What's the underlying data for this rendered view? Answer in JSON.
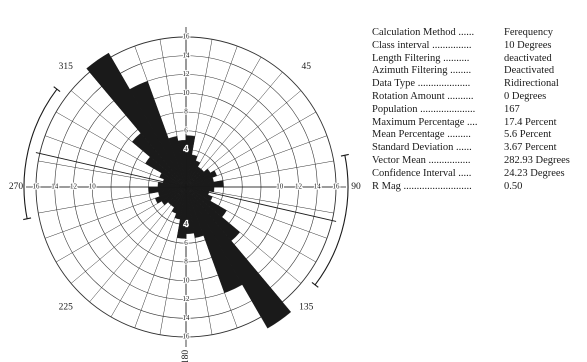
{
  "chart_data": {
    "type": "rose",
    "title": "",
    "bin_width_degrees": 10,
    "scale_max": 16,
    "rings": [
      2,
      4,
      6,
      8,
      10,
      12,
      14,
      16
    ],
    "scale_tick_labels": [
      "16",
      "14",
      "12",
      "10",
      "8",
      "6",
      "4",
      "2"
    ],
    "compass_labels": [
      {
        "angle": 0,
        "text": ""
      },
      {
        "angle": 45,
        "text": "45"
      },
      {
        "angle": 90,
        "text": "90"
      },
      {
        "angle": 135,
        "text": "135"
      },
      {
        "angle": 180,
        "text": "180"
      },
      {
        "angle": 225,
        "text": "225"
      },
      {
        "angle": 270,
        "text": "270"
      },
      {
        "angle": 315,
        "text": "315"
      }
    ],
    "bins": [
      {
        "from": 0,
        "to": 10,
        "percent": 5.5
      },
      {
        "from": 10,
        "to": 20,
        "percent": 3.5
      },
      {
        "from": 20,
        "to": 30,
        "percent": 3.0
      },
      {
        "from": 30,
        "to": 40,
        "percent": 2.5
      },
      {
        "from": 40,
        "to": 50,
        "percent": 2.5
      },
      {
        "from": 50,
        "to": 60,
        "percent": 3.0
      },
      {
        "from": 60,
        "to": 70,
        "percent": 3.5
      },
      {
        "from": 70,
        "to": 80,
        "percent": 3.0
      },
      {
        "from": 80,
        "to": 90,
        "percent": 4.0
      },
      {
        "from": 90,
        "to": 100,
        "percent": 3.0
      },
      {
        "from": 100,
        "to": 110,
        "percent": 2.5
      },
      {
        "from": 110,
        "to": 120,
        "percent": 3.0
      },
      {
        "from": 120,
        "to": 130,
        "percent": 5.0
      },
      {
        "from": 130,
        "to": 140,
        "percent": 7.5
      },
      {
        "from": 140,
        "to": 150,
        "percent": 17.4
      },
      {
        "from": 150,
        "to": 160,
        "percent": 12.0
      },
      {
        "from": 160,
        "to": 170,
        "percent": 5.5
      },
      {
        "from": 170,
        "to": 180,
        "percent": 5.0
      },
      {
        "from": 180,
        "to": 190,
        "percent": 5.5
      },
      {
        "from": 190,
        "to": 200,
        "percent": 3.5
      },
      {
        "from": 200,
        "to": 210,
        "percent": 3.0
      },
      {
        "from": 210,
        "to": 220,
        "percent": 2.5
      },
      {
        "from": 220,
        "to": 230,
        "percent": 2.5
      },
      {
        "from": 230,
        "to": 240,
        "percent": 3.0
      },
      {
        "from": 240,
        "to": 250,
        "percent": 3.5
      },
      {
        "from": 250,
        "to": 260,
        "percent": 3.0
      },
      {
        "from": 260,
        "to": 270,
        "percent": 4.0
      },
      {
        "from": 270,
        "to": 280,
        "percent": 3.0
      },
      {
        "from": 280,
        "to": 290,
        "percent": 2.5
      },
      {
        "from": 290,
        "to": 300,
        "percent": 3.0
      },
      {
        "from": 300,
        "to": 310,
        "percent": 5.0
      },
      {
        "from": 310,
        "to": 320,
        "percent": 7.5
      },
      {
        "from": 320,
        "to": 330,
        "percent": 16.5
      },
      {
        "from": 330,
        "to": 340,
        "percent": 12.0
      },
      {
        "from": 340,
        "to": 350,
        "percent": 5.5
      },
      {
        "from": 350,
        "to": 360,
        "percent": 5.0
      }
    ],
    "vector_mean_degrees": 282.93,
    "confidence_interval_degrees": 24.23,
    "grid": true
  },
  "stats": [
    {
      "label": "Calculation Method ......",
      "value": "Ferequency"
    },
    {
      "label": "Class interval ...............",
      "value": "10 Degrees"
    },
    {
      "label": "Length Filtering ..........",
      "value": "deactivated"
    },
    {
      "label": "Azimuth Filtering ........",
      "value": "Deactivated"
    },
    {
      "label": "Data Type ....................",
      "value": "Ridirectional"
    },
    {
      "label": "Rotation Amount ..........",
      "value": "0 Degrees"
    },
    {
      "label": "Population .....................",
      "value": "167"
    },
    {
      "label": "Maximum Percentage ....",
      "value": "17.4 Percent"
    },
    {
      "label": "Mean Percentage .........",
      "value": "5.6 Percent"
    },
    {
      "label": "Standard Deviation ......",
      "value": "3.67 Percent"
    },
    {
      "label": "Vector Mean ................",
      "value": "282.93 Degrees"
    },
    {
      "label": "Confidence Interval .....",
      "value": "24.23 Degrees"
    },
    {
      "label": "R Mag ..........................",
      "value": "0.50"
    }
  ],
  "colors": {
    "ink": "#1a1a1a",
    "grid": "#333333",
    "background": "#ffffff"
  }
}
